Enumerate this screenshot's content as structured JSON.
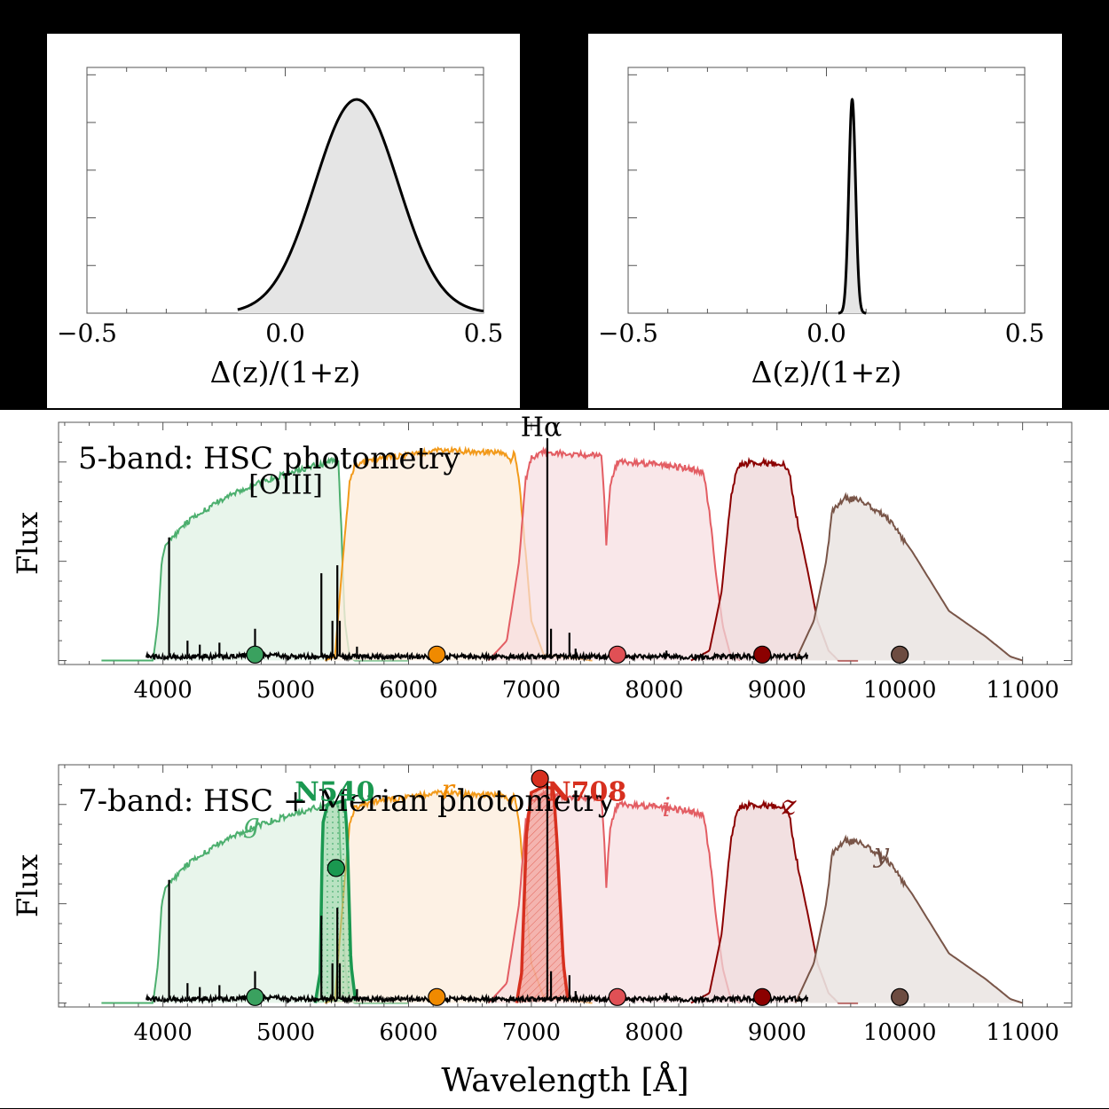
{
  "chart_data": [
    {
      "type": "area",
      "xlabel": "Δ(z)/(1+z)",
      "xticks": [
        -0.5,
        0.0,
        0.5
      ],
      "xtick_labels": [
        "−0.5",
        "0.0",
        "0.5"
      ],
      "xlim": [
        -0.5,
        0.5
      ],
      "ylim": [
        0,
        1.15
      ],
      "series": [
        {
          "dist": "gaussian",
          "mean": 0.18,
          "sigma": 0.105,
          "xmin": -0.12,
          "xmax": 0.5,
          "peak": 1.0
        }
      ]
    },
    {
      "type": "area",
      "xlabel": "Δ(z)/(1+z)",
      "xticks": [
        -0.5,
        0.0,
        0.5
      ],
      "xtick_labels": [
        "−0.5",
        "0.0",
        "0.5"
      ],
      "xlim": [
        -0.5,
        0.5
      ],
      "ylim": [
        0,
        1.15
      ],
      "series": [
        {
          "dist": "gaussian",
          "mean": 0.065,
          "sigma": 0.0085,
          "xmin": 0.03,
          "xmax": 0.1,
          "peak": 1.0
        }
      ]
    },
    {
      "type": "area",
      "title": "5-band: HSC photometry",
      "ylabel": "Flux",
      "xlim": [
        3150,
        11400
      ],
      "ylim": [
        -0.02,
        1.2
      ],
      "xticks": [
        4000,
        5000,
        6000,
        7000,
        8000,
        9000,
        10000,
        11000
      ],
      "xtick_labels": [
        "4000",
        "5000",
        "6000",
        "7000",
        "8000",
        "9000",
        "10000",
        "11000"
      ],
      "annotations": [
        {
          "text": "[OIII]",
          "x": 5000,
          "y": 0.84
        },
        {
          "text": "Hα",
          "x": 7080,
          "y": 1.13
        }
      ],
      "points": [
        {
          "x": 4750,
          "y": 0.03,
          "band": "g"
        },
        {
          "x": 6230,
          "y": 0.03,
          "band": "r"
        },
        {
          "x": 7700,
          "y": 0.03,
          "band": "i"
        },
        {
          "x": 8880,
          "y": 0.03,
          "band": "z"
        },
        {
          "x": 10000,
          "y": 0.03,
          "band": "y"
        }
      ]
    },
    {
      "type": "area",
      "title": "7-band: HSC + Merian photometry",
      "ylabel": "Flux",
      "xlabel": "Wavelength [Å]",
      "xlim": [
        3150,
        11400
      ],
      "ylim": [
        -0.02,
        1.2
      ],
      "xticks": [
        4000,
        5000,
        6000,
        7000,
        8000,
        9000,
        10000,
        11000
      ],
      "xtick_labels": [
        "4000",
        "5000",
        "6000",
        "7000",
        "8000",
        "9000",
        "10000",
        "11000"
      ],
      "annotations": [
        {
          "text": "g",
          "x": 4720,
          "y": 0.86,
          "color": "#4caf6e"
        },
        {
          "text": "N540",
          "x": 5400,
          "y": 1.02,
          "color": "#1a9850"
        },
        {
          "text": "r",
          "x": 6320,
          "y": 1.03,
          "color": "#f08a00"
        },
        {
          "text": "N708",
          "x": 7450,
          "y": 1.02,
          "color": "#d7301f"
        },
        {
          "text": "i",
          "x": 8100,
          "y": 0.94,
          "color": "#e05a60"
        },
        {
          "text": "z",
          "x": 9100,
          "y": 0.95,
          "color": "#8b0000"
        },
        {
          "text": "y",
          "x": 9850,
          "y": 0.71,
          "color": "#6d4c41"
        }
      ],
      "points": [
        {
          "x": 4750,
          "y": 0.03,
          "band": "g"
        },
        {
          "x": 5410,
          "y": 0.68,
          "band": "N540"
        },
        {
          "x": 6230,
          "y": 0.03,
          "band": "r"
        },
        {
          "x": 7070,
          "y": 1.13,
          "band": "N708"
        },
        {
          "x": 7700,
          "y": 0.03,
          "band": "i"
        },
        {
          "x": 8880,
          "y": 0.03,
          "band": "z"
        },
        {
          "x": 10000,
          "y": 0.03,
          "band": "y"
        }
      ]
    }
  ],
  "bands": [
    {
      "name": "g",
      "color": "#4caf6e",
      "fill": "#e4f3e8",
      "fill_opacity": 0.85,
      "curve": [
        [
          3500,
          0
        ],
        [
          3920,
          0
        ],
        [
          3960,
          0.2
        ],
        [
          3990,
          0.5
        ],
        [
          4020,
          0.58
        ],
        [
          4200,
          0.7
        ],
        [
          4500,
          0.82
        ],
        [
          4800,
          0.9
        ],
        [
          5100,
          0.96
        ],
        [
          5300,
          0.99
        ],
        [
          5400,
          1.01
        ],
        [
          5430,
          1.0
        ],
        [
          5450,
          0.7
        ],
        [
          5480,
          0.2
        ],
        [
          5520,
          0.02
        ],
        [
          5560,
          0
        ],
        [
          6000,
          0
        ]
      ]
    },
    {
      "name": "r",
      "color": "#f29a1b",
      "fill": "#fdeedd",
      "fill_opacity": 0.8,
      "curve": [
        [
          5320,
          0
        ],
        [
          5400,
          0.02
        ],
        [
          5450,
          0.4
        ],
        [
          5520,
          0.9
        ],
        [
          5560,
          0.98
        ],
        [
          5700,
          1.01
        ],
        [
          6000,
          1.04
        ],
        [
          6300,
          1.06
        ],
        [
          6600,
          1.05
        ],
        [
          6780,
          1.05
        ],
        [
          6830,
          1.0
        ],
        [
          6860,
          1.06
        ],
        [
          6900,
          0.9
        ],
        [
          6960,
          0.5
        ],
        [
          7000,
          0.2
        ],
        [
          7100,
          0.03
        ],
        [
          7500,
          0
        ]
      ]
    },
    {
      "name": "i",
      "color": "#e35d63",
      "fill": "#f6dde0",
      "fill_opacity": 0.7,
      "curve": [
        [
          6650,
          0
        ],
        [
          6800,
          0.1
        ],
        [
          6900,
          0.5
        ],
        [
          6950,
          0.9
        ],
        [
          7000,
          1.02
        ],
        [
          7100,
          1.05
        ],
        [
          7300,
          1.04
        ],
        [
          7570,
          1.03
        ],
        [
          7590,
          0.85
        ],
        [
          7610,
          0.58
        ],
        [
          7640,
          0.88
        ],
        [
          7700,
          1.0
        ],
        [
          8000,
          0.99
        ],
        [
          8250,
          0.97
        ],
        [
          8400,
          0.95
        ],
        [
          8450,
          0.75
        ],
        [
          8500,
          0.45
        ],
        [
          8560,
          0.17
        ],
        [
          8620,
          0.03
        ],
        [
          8700,
          0
        ]
      ]
    },
    {
      "name": "z",
      "color": "#8b0000",
      "fill": "#edd5d7",
      "fill_opacity": 0.75,
      "curve": [
        [
          8300,
          0
        ],
        [
          8450,
          0.05
        ],
        [
          8550,
          0.35
        ],
        [
          8620,
          0.8
        ],
        [
          8680,
          0.98
        ],
        [
          8800,
          1.0
        ],
        [
          9050,
          0.99
        ],
        [
          9100,
          0.95
        ],
        [
          9150,
          0.75
        ],
        [
          9250,
          0.45
        ],
        [
          9330,
          0.2
        ],
        [
          9420,
          0.05
        ],
        [
          9500,
          0
        ],
        [
          9660,
          0
        ]
      ]
    },
    {
      "name": "y",
      "color": "#795548",
      "fill": "#ebe6e3",
      "fill_opacity": 0.9,
      "curve": [
        [
          9150,
          0
        ],
        [
          9300,
          0.2
        ],
        [
          9400,
          0.5
        ],
        [
          9450,
          0.75
        ],
        [
          9550,
          0.82
        ],
        [
          9700,
          0.8
        ],
        [
          9900,
          0.72
        ],
        [
          10100,
          0.55
        ],
        [
          10300,
          0.35
        ],
        [
          10400,
          0.25
        ],
        [
          10700,
          0.12
        ],
        [
          10900,
          0.02
        ],
        [
          11000,
          0
        ]
      ]
    }
  ],
  "merian_bands": [
    {
      "name": "N540",
      "color": "#1a9850",
      "fill": "#8fd19e",
      "fill_opacity": 0.55,
      "curve": [
        [
          5240,
          0
        ],
        [
          5280,
          0.15
        ],
        [
          5300,
          0.9
        ],
        [
          5340,
          1.0
        ],
        [
          5420,
          1.01
        ],
        [
          5480,
          1.02
        ],
        [
          5500,
          0.85
        ],
        [
          5530,
          0.2
        ],
        [
          5570,
          0
        ]
      ]
    },
    {
      "name": "N708",
      "color": "#d7301f",
      "fill": "#f08a80",
      "fill_opacity": 0.55,
      "curve": [
        [
          6880,
          0
        ],
        [
          6920,
          0.15
        ],
        [
          6960,
          0.85
        ],
        [
          7000,
          1.06
        ],
        [
          7100,
          1.09
        ],
        [
          7180,
          1.08
        ],
        [
          7210,
          0.8
        ],
        [
          7260,
          0.2
        ],
        [
          7300,
          0
        ]
      ]
    }
  ],
  "spectrum": {
    "lines": [
      [
        4050,
        0.62
      ],
      [
        4200,
        0.1
      ],
      [
        4300,
        0.08
      ],
      [
        4460,
        0.09
      ],
      [
        4750,
        0.16
      ],
      [
        5290,
        0.44
      ],
      [
        5380,
        0.2
      ],
      [
        5420,
        0.48
      ],
      [
        5440,
        0.2
      ],
      [
        5580,
        0.07
      ],
      [
        7130,
        1.12
      ],
      [
        7160,
        0.16
      ],
      [
        7310,
        0.14
      ],
      [
        7360,
        0.06
      ],
      [
        8100,
        0.05
      ]
    ]
  }
}
